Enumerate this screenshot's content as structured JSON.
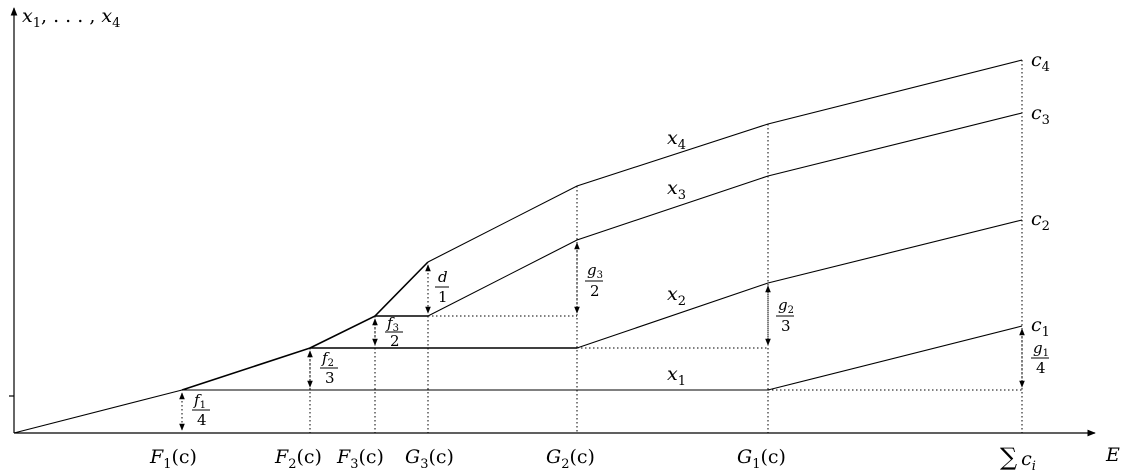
{
  "axes": {
    "y_label": {
      "main": "x",
      "sub1": "1",
      "mid": ", . . . , ",
      "main2": "x",
      "sub2": "4"
    },
    "x_label": "E"
  },
  "x_ticks": [
    {
      "main": "F",
      "sub": "1",
      "rest": "(c)"
    },
    {
      "main": "F",
      "sub": "2",
      "rest": "(c)"
    },
    {
      "main": "F",
      "sub": "3",
      "rest": "(c)"
    },
    {
      "main": "G",
      "sub": "3",
      "rest": "(c)"
    },
    {
      "main": "G",
      "sub": "2",
      "rest": "(c)"
    },
    {
      "main": "G",
      "sub": "1",
      "rest": "(c)"
    },
    {
      "main": "∑",
      "sub": "i",
      "rest": "c"
    }
  ],
  "series_labels": [
    {
      "main": "x",
      "sub": "4"
    },
    {
      "main": "x",
      "sub": "3"
    },
    {
      "main": "x",
      "sub": "2"
    },
    {
      "main": "x",
      "sub": "1"
    }
  ],
  "right_labels": [
    {
      "main": "c",
      "sub": "4"
    },
    {
      "main": "c",
      "sub": "3"
    },
    {
      "main": "c",
      "sub": "2"
    },
    {
      "main": "c",
      "sub": "1"
    }
  ],
  "fractions": [
    {
      "num": "f",
      "num_sub": "1",
      "den": "4"
    },
    {
      "num": "f",
      "num_sub": "2",
      "den": "3"
    },
    {
      "num": "f",
      "num_sub": "3",
      "den": "2"
    },
    {
      "num": "d",
      "num_sub": "",
      "den": "1"
    },
    {
      "num": "g",
      "num_sub": "3",
      "den": "2"
    },
    {
      "num": "g",
      "num_sub": "2",
      "den": "3"
    },
    {
      "num": "g",
      "num_sub": "1",
      "den": "4"
    }
  ]
}
